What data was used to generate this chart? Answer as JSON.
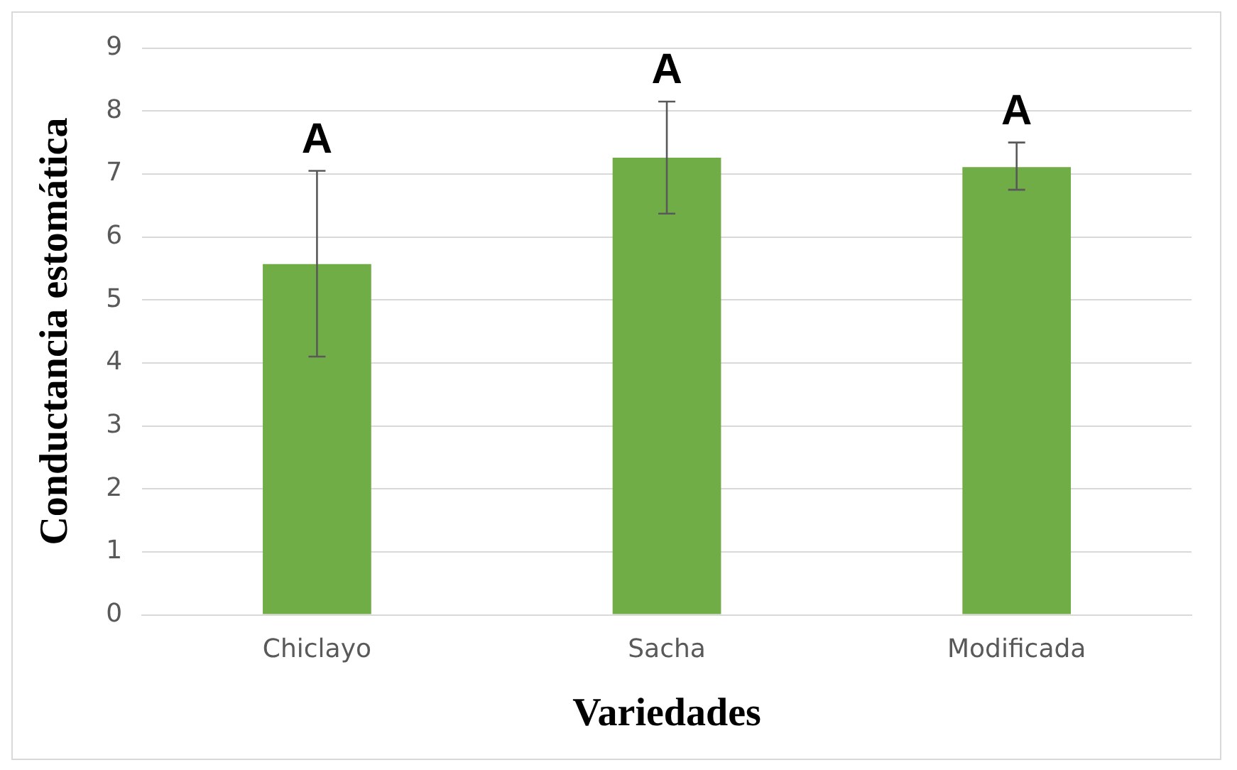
{
  "chart_data": {
    "type": "bar",
    "xlabel": "Variedades",
    "ylabel": "Conductancia estomática",
    "categories": [
      "Chiclayo",
      "Sacha",
      "Modificada"
    ],
    "values": [
      5.57,
      7.26,
      7.11
    ],
    "color": "#70ad47",
    "errors": [
      [
        4.1,
        7.05
      ],
      [
        6.37,
        8.15
      ],
      [
        6.75,
        7.5
      ]
    ],
    "ylim": [
      0,
      9
    ],
    "yticks": [
      0,
      1,
      2,
      3,
      4,
      5,
      6,
      7,
      8,
      9
    ],
    "grid": "y",
    "legend": false,
    "annotations": [
      {
        "text": "A",
        "x": "Chiclayo",
        "y": 7.05
      },
      {
        "text": "A",
        "x": "Sacha",
        "y": 8.15
      },
      {
        "text": "A",
        "x": "Modificada",
        "y": 7.5
      }
    ]
  }
}
